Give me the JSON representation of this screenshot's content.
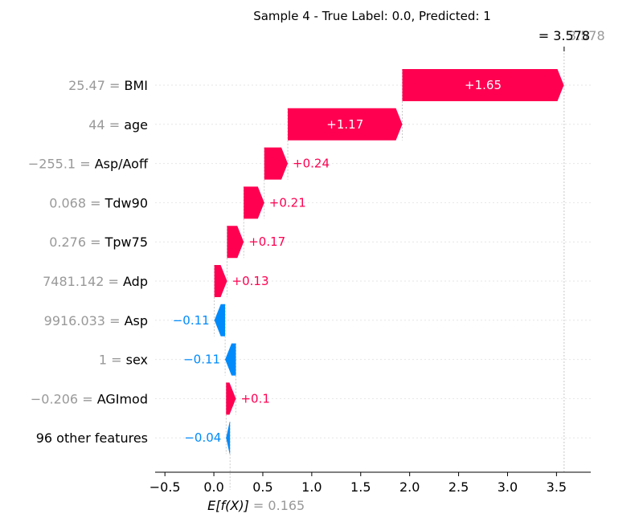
{
  "chart_data": {
    "type": "waterfall",
    "title": "Sample 4 - True Label: 0.0, Predicted: 1",
    "base_value": 0.165,
    "base_value_label": "0.165",
    "base_label_prefix": "= 0.165",
    "output_value": 3.578,
    "output_label_overlap_a": "= 3.578",
    "output_label_overlap_b": "3.578",
    "expected_label": "E[f(X)]",
    "xlim": [
      -0.6,
      3.85
    ],
    "xticks": [
      -0.5,
      0.0,
      0.5,
      1.0,
      1.5,
      2.0,
      2.5,
      3.0,
      3.5
    ],
    "xtick_labels": [
      "−0.5",
      "0.0",
      "0.5",
      "1.0",
      "1.5",
      "2.0",
      "2.5",
      "3.0",
      "3.5"
    ],
    "features": [
      {
        "value": "25.47",
        "name": "BMI",
        "contribution": 1.65,
        "label": "+1.65"
      },
      {
        "value": "44",
        "name": "age",
        "contribution": 1.17,
        "label": "+1.17"
      },
      {
        "value": "−255.1",
        "name": "Asp/Aoff",
        "contribution": 0.24,
        "label": "+0.24"
      },
      {
        "value": "0.068",
        "name": "Tdw90",
        "contribution": 0.21,
        "label": "+0.21"
      },
      {
        "value": "0.276",
        "name": "Tpw75",
        "contribution": 0.17,
        "label": "+0.17"
      },
      {
        "value": "7481.142",
        "name": "Adp",
        "contribution": 0.13,
        "label": "+0.13"
      },
      {
        "value": "9916.033",
        "name": "Asp",
        "contribution": -0.11,
        "label": "−0.11"
      },
      {
        "value": "1",
        "name": "sex",
        "contribution": -0.11,
        "label": "−0.11"
      },
      {
        "value": "−0.206",
        "name": "AGImod",
        "contribution": 0.1,
        "label": "+0.1"
      },
      {
        "value": "",
        "name": "96 other features",
        "contribution": -0.04,
        "label": "−0.04"
      }
    ],
    "colors": {
      "positive": "#ff0051",
      "negative": "#008bfb",
      "muted": "#999999",
      "grid": "#e6e6e6"
    }
  }
}
